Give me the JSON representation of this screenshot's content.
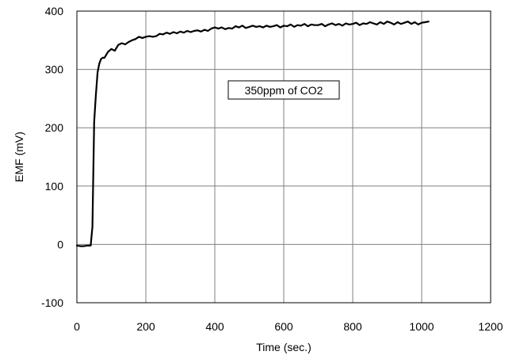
{
  "chart_data": {
    "type": "line",
    "title": "",
    "xlabel": "Time (sec.)",
    "ylabel": "EMF (mV)",
    "xlim": [
      0,
      1200
    ],
    "ylim": [
      -100,
      400
    ],
    "xticks": [
      0,
      200,
      400,
      600,
      800,
      1000,
      1200
    ],
    "yticks": [
      -100,
      0,
      100,
      200,
      300,
      400
    ],
    "xtick_labels": [
      "0",
      "200",
      "400",
      "600",
      "800",
      "1000",
      "1200"
    ],
    "ytick_labels": [
      "-100",
      "0",
      "100",
      "200",
      "300",
      "400"
    ],
    "grid": true,
    "legend": "none",
    "line_color": "#000000",
    "grid_color": "#808080",
    "annotation": "350ppm of CO2",
    "series": [
      {
        "x": [
          0,
          10,
          20,
          30,
          40,
          45,
          50,
          55,
          60,
          65,
          70,
          75,
          80,
          90,
          100,
          110,
          120,
          130,
          140,
          150,
          160,
          170,
          180,
          190,
          200,
          210,
          220,
          230,
          240,
          250,
          260,
          270,
          280,
          290,
          300,
          310,
          320,
          330,
          340,
          350,
          360,
          370,
          380,
          390,
          400,
          410,
          420,
          430,
          440,
          450,
          460,
          470,
          480,
          490,
          500,
          510,
          520,
          530,
          540,
          550,
          560,
          570,
          580,
          590,
          600,
          610,
          620,
          630,
          640,
          650,
          660,
          670,
          680,
          690,
          700,
          710,
          720,
          730,
          740,
          750,
          760,
          770,
          780,
          790,
          800,
          810,
          820,
          830,
          840,
          850,
          860,
          870,
          880,
          890,
          900,
          910,
          920,
          930,
          940,
          950,
          960,
          970,
          980,
          990,
          1000,
          1010,
          1020
        ],
        "y": [
          -2,
          -3,
          -3,
          -2,
          -2,
          30,
          210,
          255,
          295,
          310,
          318,
          320,
          320,
          330,
          335,
          332,
          342,
          345,
          343,
          347,
          350,
          352,
          356,
          354,
          356,
          357,
          356,
          357,
          361,
          360,
          363,
          361,
          364,
          362,
          365,
          363,
          366,
          364,
          366,
          367,
          365,
          368,
          366,
          370,
          372,
          370,
          372,
          369,
          371,
          370,
          374,
          372,
          375,
          371,
          373,
          375,
          373,
          374,
          372,
          375,
          373,
          374,
          376,
          372,
          375,
          374,
          377,
          373,
          376,
          375,
          378,
          374,
          377,
          376,
          376,
          378,
          374,
          377,
          379,
          376,
          378,
          375,
          379,
          377,
          378,
          380,
          376,
          379,
          378,
          381,
          379,
          377,
          381,
          378,
          382,
          380,
          377,
          381,
          378,
          380,
          382,
          378,
          381,
          377,
          380,
          381,
          382
        ]
      }
    ]
  }
}
